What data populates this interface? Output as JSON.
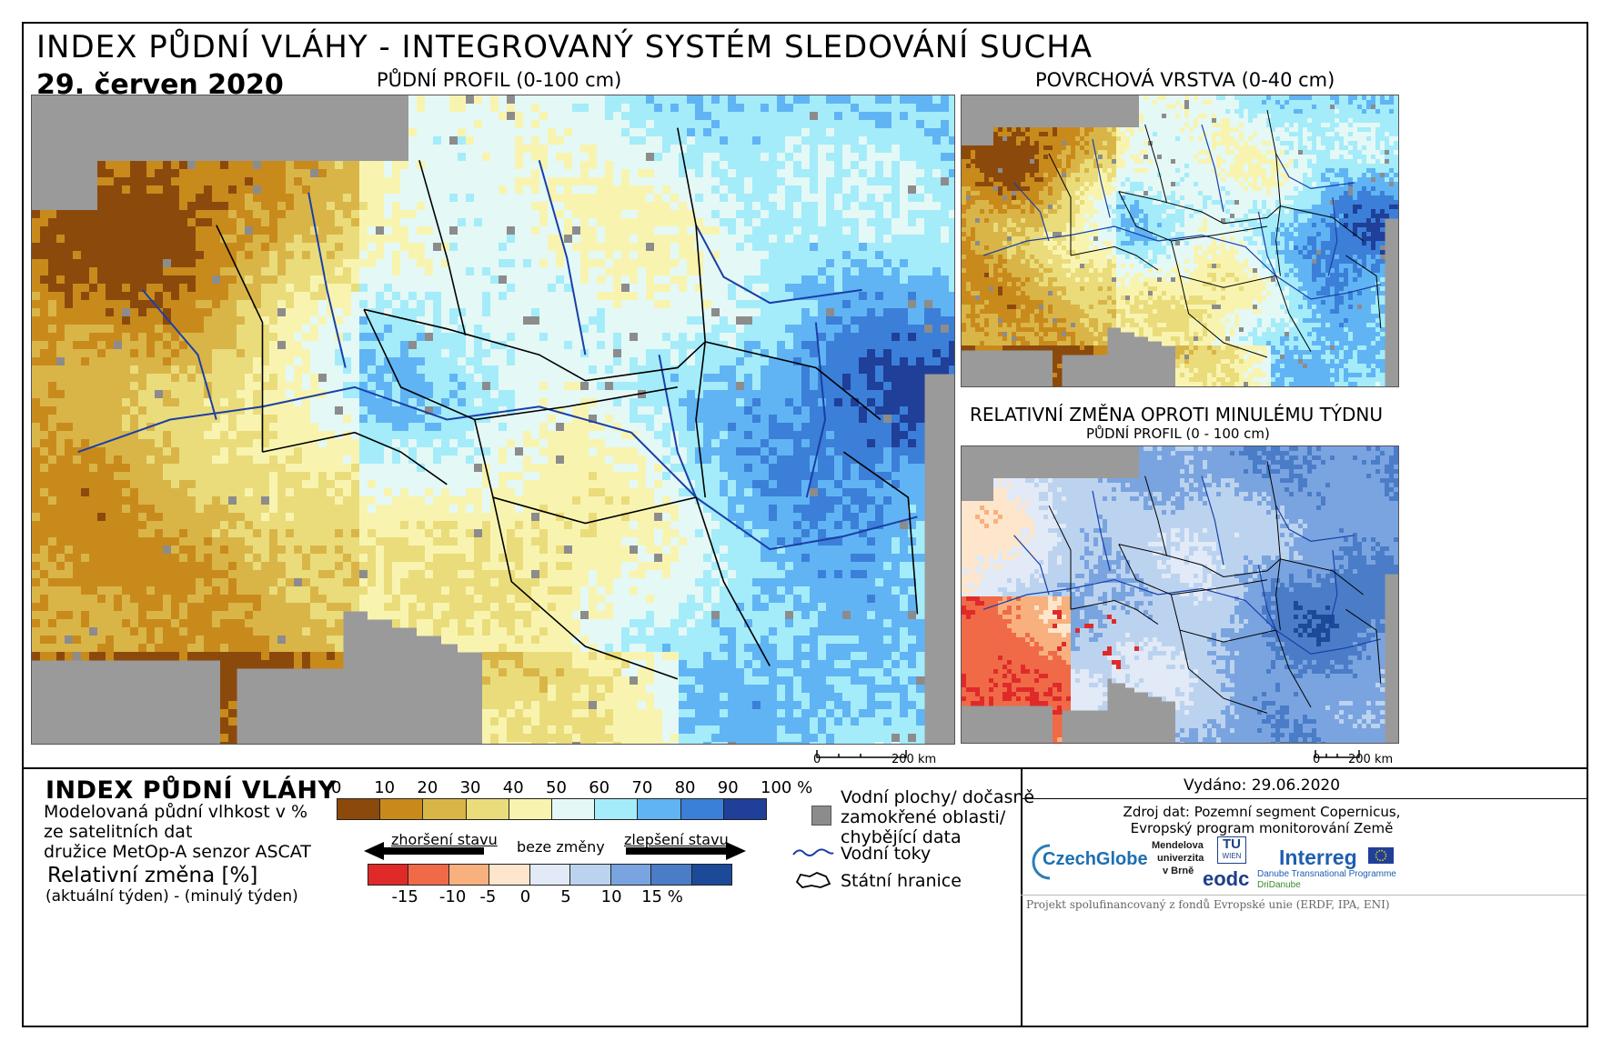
{
  "header": {
    "title": "INDEX PŮDNÍ VLÁHY - INTEGROVANÝ SYSTÉM SLEDOVÁNÍ SUCHA",
    "date": "29. červen 2020"
  },
  "maps": {
    "main_label": "PŮDNÍ PROFIL (0-100 cm)",
    "top_right_label": "POVRCHOVÁ VRSTVA (0-40 cm)",
    "bottom_right_title": "RELATIVNÍ ZMĚNA OPROTI MINULÉMU TÝDNU",
    "bottom_right_subtitle": "PŮDNÍ PROFIL (0 - 100 cm)",
    "scale_main": {
      "zero": "0",
      "end": "200 km"
    },
    "scale_small": {
      "zero": "0",
      "end": "200 km"
    }
  },
  "legend": {
    "title": "INDEX PŮDNÍ VLÁHY",
    "desc_line1": "Modelovaná půdní vlhkost v %",
    "desc_line2": "ze satelitních dat",
    "desc_line3": "družice MetOp-A senzor ASCAT",
    "change_title": "Relativní změna [%]",
    "change_desc": "(aktuální týden) - (minulý týden)",
    "index_ticks": [
      "0",
      "10",
      "20",
      "30",
      "40",
      "50",
      "60",
      "70",
      "80",
      "90",
      "100 %"
    ],
    "index_colors": [
      "#8b4a0c",
      "#c98a1c",
      "#d9b548",
      "#eadc7a",
      "#f8f4b0",
      "#e4f8f6",
      "#a4ecfa",
      "#60b4f4",
      "#3b7fd8",
      "#1f3f99"
    ],
    "worse_label": "zhoršení stavu",
    "nochange_label": "beze změny",
    "better_label": "zlepšení stavu",
    "change_ticks": [
      "-15",
      "-10",
      "-5",
      "0",
      "5",
      "10",
      "15 %"
    ],
    "change_colors": [
      "#e02a2a",
      "#f06a48",
      "#f8b07e",
      "#fde6cc",
      "#e1eaf6",
      "#bcd3ef",
      "#7aa4e0",
      "#4a7cc8",
      "#1c4a98"
    ],
    "symbols": {
      "water_label_1": "Vodní plochy/ dočasně",
      "water_label_2": "zamokřené oblasti/",
      "water_label_3": "chybějící data",
      "rivers_label": "Vodní toky",
      "borders_label": "Státní hranice"
    }
  },
  "info": {
    "issued": "Vydáno: 29.06.2020",
    "source_line1": "Zdroj dat: Pozemní segment Copernicus,",
    "source_line2": "Evropský program monitorování Země",
    "logos": {
      "czechglobe": "CzechGlobe",
      "mendel_1": "Mendelova",
      "mendel_2": "univerzita",
      "mendel_3": "v Brně",
      "tu_1": "TU",
      "tu_2": "WIEN",
      "eodc": "eodc",
      "interreg": "Interreg",
      "danube_1": "Danube Transnational Programme",
      "danube_2": "DriDanube"
    },
    "footer": "Projekt spolufinancovaný z fondů Evropské unie (ERDF, IPA, ENI)"
  },
  "colors": {
    "sea": "#9a9a9a",
    "river": "#1a3fa8",
    "border": "#000000",
    "missing": "#8c8c8c"
  }
}
